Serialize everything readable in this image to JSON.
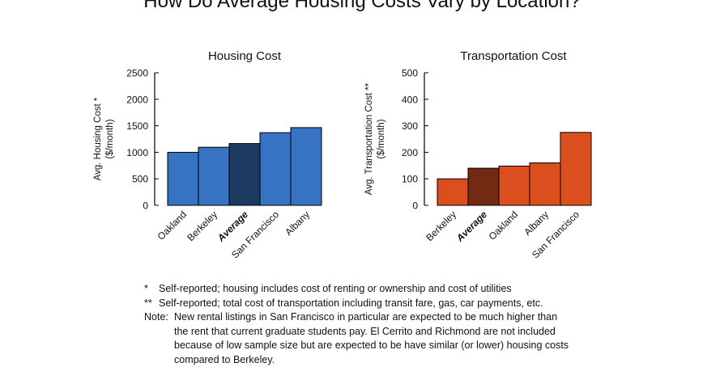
{
  "title": "How Do Average Housing Costs Vary by Location?",
  "chart_data": [
    {
      "type": "bar",
      "title": "Housing Cost",
      "ylabel": "Avg. Housing Cost * ($/month)",
      "ylabel_lines": [
        "Avg. Housing Cost *",
        "($/month)"
      ],
      "categories": [
        "Oakland",
        "Berkeley",
        "Average",
        "San Francisco",
        "Albany"
      ],
      "values": [
        1000,
        1095,
        1165,
        1370,
        1465
      ],
      "highlight_category": "Average",
      "ylim": [
        0,
        2500
      ],
      "yticks": [
        0,
        500,
        1000,
        1500,
        2000,
        2500
      ],
      "colors": {
        "bar": "#3673c3",
        "highlight": "#1d3a63"
      },
      "grid": false,
      "legend": "none"
    },
    {
      "type": "bar",
      "title": "Transportation Cost",
      "ylabel": "Avg. Transportation Cost ** ($/month)",
      "ylabel_lines": [
        "Avg. Transportation Cost **",
        "($/month)"
      ],
      "categories": [
        "Berkeley",
        "Average",
        "Oakland",
        "Albany",
        "San Francisco"
      ],
      "values": [
        100,
        140,
        148,
        160,
        275
      ],
      "highlight_category": "Average",
      "ylim": [
        0,
        500
      ],
      "yticks": [
        0,
        100,
        200,
        300,
        400,
        500
      ],
      "colors": {
        "bar": "#db4f1e",
        "highlight": "#722b12"
      },
      "grid": false,
      "legend": "none"
    }
  ],
  "notes": {
    "note1_mark": "*",
    "note1_text": "Self-reported; housing includes cost of renting or ownership and cost of utilities",
    "note2_mark": "**",
    "note2_text": "Self-reported; total cost of transportation including transit fare, gas, car payments, etc.",
    "note3_mark": "Note:",
    "note3_line1": "New rental listings in San Francisco in particular are expected to be much higher than",
    "note3_line2": "the rent that current graduate students pay.  El Cerrito and Richmond are not included",
    "note3_line3": "because of low sample size but are expected to be have similar (or lower) housing costs",
    "note3_line4": "compared to Berkeley."
  }
}
